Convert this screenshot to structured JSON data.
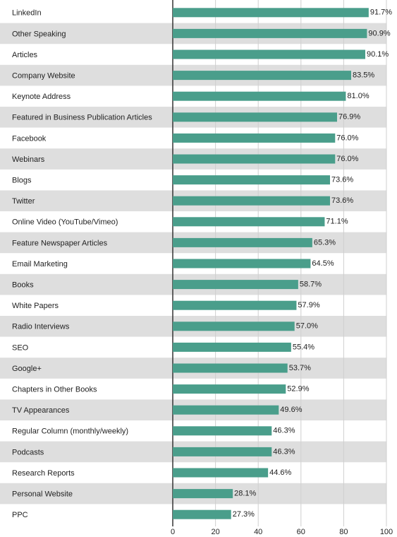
{
  "chart_data": {
    "type": "barh",
    "categories": [
      "LinkedIn",
      "Other Speaking",
      "Articles",
      "Company Website",
      "Keynote Address",
      "Featured in Business Publication Articles",
      "Facebook",
      "Webinars",
      "Blogs",
      "Twitter",
      "Online Video (YouTube/Vimeo)",
      "Feature Newspaper Articles",
      "Email Marketing",
      "Books",
      "White Papers",
      "Radio Interviews",
      "SEO",
      "Google+",
      "Chapters in Other Books",
      "TV Appearances",
      "Regular Column (monthly/weekly)",
      "Podcasts",
      "Research Reports",
      "Personal Website",
      "PPC"
    ],
    "values": [
      91.7,
      90.9,
      90.1,
      83.5,
      81.0,
      76.9,
      76.0,
      76.0,
      73.6,
      73.6,
      71.1,
      65.3,
      64.5,
      58.7,
      57.9,
      57.0,
      55.4,
      53.7,
      52.9,
      49.6,
      46.3,
      46.3,
      44.6,
      28.1,
      27.3
    ],
    "value_labels": [
      "91.7%",
      "90.9%",
      "90.1%",
      "83.5%",
      "81.0%",
      "76.9%",
      "76.0%",
      "76.0%",
      "73.6%",
      "73.6%",
      "71.1%",
      "65.3%",
      "64.5%",
      "58.7%",
      "57.9%",
      "57.0%",
      "55.4%",
      "53.7%",
      "52.9%",
      "49.6%",
      "46.3%",
      "46.3%",
      "44.6%",
      "28.1%",
      "27.3%"
    ],
    "color": "#4a9e8b",
    "xlim": [
      0,
      100
    ],
    "xticks": [
      0,
      20,
      40,
      60,
      80,
      100
    ],
    "grid": true
  }
}
